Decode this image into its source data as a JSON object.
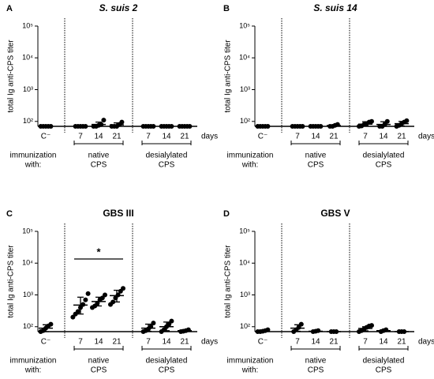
{
  "chart_data": [
    {
      "type": "dotplot",
      "letter": "A",
      "title": "S. suis 2",
      "title_italic": true,
      "ylabel": "total Ig anti-CPS titer",
      "log_scale": true,
      "ylim": [
        70,
        100000
      ],
      "yticks": [
        {
          "value": 100,
          "label": "10²"
        },
        {
          "value": 1000,
          "label": "10³"
        },
        {
          "value": 10000,
          "label": "10⁴"
        },
        {
          "value": 100000,
          "label": "10⁵"
        }
      ],
      "categories": [
        "C⁻",
        "7",
        "14",
        "21",
        "7",
        "14",
        "21"
      ],
      "x_unit": "days",
      "row_label": [
        "immunization",
        "with:"
      ],
      "group_labels": [
        [
          "native",
          "CPS"
        ],
        [
          "desialylated",
          "CPS"
        ]
      ],
      "color": "#000000",
      "groups": [
        {
          "points": [
            70,
            70,
            70,
            70,
            70
          ],
          "mean": 70,
          "lo": 70,
          "hi": 70
        },
        {
          "points": [
            70,
            70,
            70,
            70,
            70
          ],
          "mean": 70,
          "lo": 70,
          "hi": 70
        },
        {
          "points": [
            70,
            70,
            75,
            80,
            110
          ],
          "mean": 80,
          "lo": 70,
          "hi": 95
        },
        {
          "points": [
            70,
            70,
            70,
            80,
            95
          ],
          "mean": 78,
          "lo": 70,
          "hi": 90
        },
        {
          "points": [
            70,
            70,
            70,
            70,
            70
          ],
          "mean": 70,
          "lo": 70,
          "hi": 70
        },
        {
          "points": [
            70,
            70,
            70,
            70,
            70
          ],
          "mean": 70,
          "lo": 70,
          "hi": 70
        },
        {
          "points": [
            70,
            70,
            70,
            70,
            70
          ],
          "mean": 70,
          "lo": 70,
          "hi": 70
        }
      ]
    },
    {
      "type": "dotplot",
      "letter": "B",
      "title": "S. suis 14",
      "title_italic": true,
      "ylabel": "total Ig anti-CPS titer",
      "log_scale": true,
      "ylim": [
        70,
        100000
      ],
      "yticks": [
        {
          "value": 100,
          "label": "10²"
        },
        {
          "value": 1000,
          "label": "10³"
        },
        {
          "value": 10000,
          "label": "10⁴"
        },
        {
          "value": 100000,
          "label": "10⁵"
        }
      ],
      "categories": [
        "C⁻",
        "7",
        "14",
        "21",
        "7",
        "14",
        "21"
      ],
      "x_unit": "days",
      "row_label": [
        "immunization",
        "with:"
      ],
      "group_labels": [
        [
          "native",
          "CPS"
        ],
        [
          "desialylated",
          "CPS"
        ]
      ],
      "color": "#000000",
      "groups": [
        {
          "points": [
            70,
            70,
            70,
            70,
            70
          ],
          "mean": 70,
          "lo": 70,
          "hi": 70
        },
        {
          "points": [
            70,
            70,
            70,
            70,
            70
          ],
          "mean": 70,
          "lo": 70,
          "hi": 70
        },
        {
          "points": [
            70,
            70,
            70,
            70,
            70
          ],
          "mean": 70,
          "lo": 70,
          "hi": 70
        },
        {
          "points": [
            70,
            70,
            75,
            80
          ],
          "mean": 74,
          "lo": 70,
          "hi": 78
        },
        {
          "points": [
            70,
            72,
            80,
            85,
            95,
            100
          ],
          "mean": 82,
          "lo": 72,
          "hi": 98
        },
        {
          "points": [
            70,
            70,
            80,
            100
          ],
          "mean": 80,
          "lo": 70,
          "hi": 98
        },
        {
          "points": [
            70,
            75,
            85,
            95,
            105
          ],
          "mean": 85,
          "lo": 72,
          "hi": 100
        }
      ]
    },
    {
      "type": "dotplot",
      "letter": "C",
      "title": "GBS III",
      "title_italic": false,
      "ylabel": "total Ig anti-CPS titer",
      "log_scale": true,
      "ylim": [
        70,
        100000
      ],
      "yticks": [
        {
          "value": 100,
          "label": "10²"
        },
        {
          "value": 1000,
          "label": "10³"
        },
        {
          "value": 10000,
          "label": "10⁴"
        },
        {
          "value": 100000,
          "label": "10⁵"
        }
      ],
      "categories": [
        "C⁻",
        "7",
        "14",
        "21",
        "7",
        "14",
        "21"
      ],
      "x_unit": "days",
      "row_label": [
        "immunization",
        "with:"
      ],
      "group_labels": [
        [
          "native",
          "CPS"
        ],
        [
          "desialylated",
          "CPS"
        ]
      ],
      "color": "#000000",
      "significance": {
        "label": "*",
        "from": 1,
        "to": 3
      },
      "groups": [
        {
          "points": [
            70,
            75,
            90,
            105,
            120
          ],
          "mean": 90,
          "lo": 70,
          "hi": 115
        },
        {
          "points": [
            200,
            250,
            300,
            400,
            500,
            700,
            1100
          ],
          "mean": 480,
          "lo": 250,
          "hi": 850
        },
        {
          "points": [
            400,
            450,
            550,
            700,
            800,
            1000
          ],
          "mean": 620,
          "lo": 450,
          "hi": 850
        },
        {
          "points": [
            500,
            600,
            800,
            1000,
            1300,
            1600
          ],
          "mean": 950,
          "lo": 600,
          "hi": 1400
        },
        {
          "points": [
            70,
            75,
            85,
            100,
            130
          ],
          "mean": 90,
          "lo": 72,
          "hi": 120
        },
        {
          "points": [
            70,
            80,
            100,
            120,
            150
          ],
          "mean": 100,
          "lo": 75,
          "hi": 140
        },
        {
          "points": [
            70,
            72,
            75,
            80
          ],
          "mean": 75,
          "lo": 70,
          "hi": 80
        }
      ]
    },
    {
      "type": "dotplot",
      "letter": "D",
      "title": "GBS V",
      "title_italic": false,
      "ylabel": "total Ig anti-CPS titer",
      "log_scale": true,
      "ylim": [
        70,
        100000
      ],
      "yticks": [
        {
          "value": 100,
          "label": "10²"
        },
        {
          "value": 1000,
          "label": "10³"
        },
        {
          "value": 10000,
          "label": "10⁴"
        },
        {
          "value": 100000,
          "label": "10⁵"
        }
      ],
      "categories": [
        "C⁻",
        "7",
        "14",
        "21",
        "7",
        "14",
        "21"
      ],
      "x_unit": "days",
      "row_label": [
        "immunization",
        "with:"
      ],
      "group_labels": [
        [
          "native",
          "CPS"
        ],
        [
          "desialylated",
          "CPS"
        ]
      ],
      "color": "#000000",
      "groups": [
        {
          "points": [
            70,
            70,
            72,
            75,
            80
          ],
          "mean": 73,
          "lo": 70,
          "hi": 77
        },
        {
          "points": [
            70,
            80,
            95,
            120
          ],
          "mean": 90,
          "lo": 72,
          "hi": 115
        },
        {
          "points": [
            70,
            72,
            75
          ],
          "mean": 72,
          "lo": 70,
          "hi": 75
        },
        {
          "points": [
            70,
            70,
            70
          ],
          "mean": 70,
          "lo": 70,
          "hi": 70
        },
        {
          "points": [
            70,
            75,
            85,
            95,
            105,
            110
          ],
          "mean": 88,
          "lo": 74,
          "hi": 100
        },
        {
          "points": [
            70,
            75,
            80
          ],
          "mean": 75,
          "lo": 70,
          "hi": 80
        },
        {
          "points": [
            70,
            70,
            70
          ],
          "mean": 70,
          "lo": 70,
          "hi": 70
        }
      ]
    }
  ]
}
